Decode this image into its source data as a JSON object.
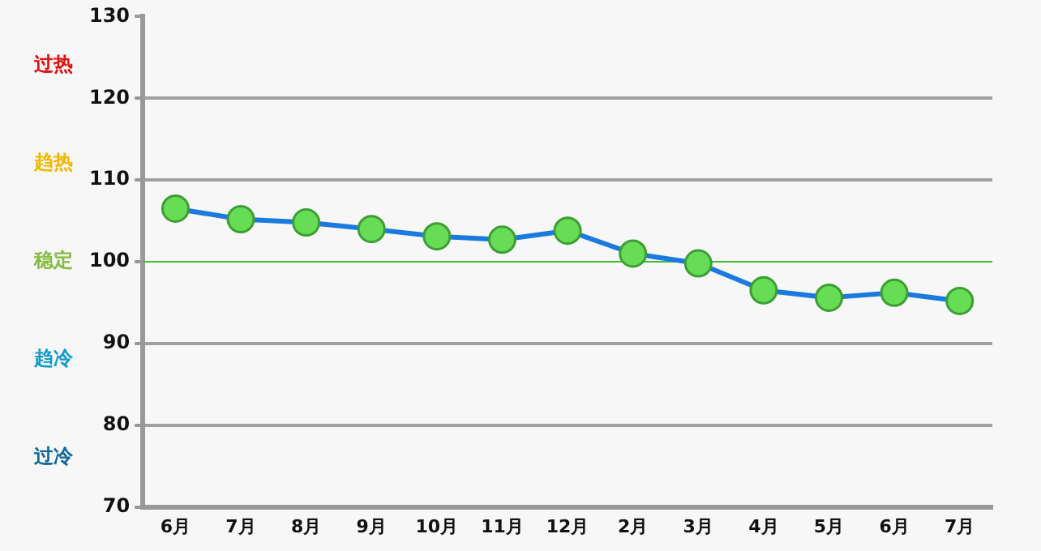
{
  "chart_data": {
    "type": "line",
    "categories": [
      "6月",
      "7月",
      "8月",
      "9月",
      "10月",
      "11月",
      "12月",
      "2月",
      "3月",
      "4月",
      "5月",
      "6月",
      "7月"
    ],
    "series": [
      {
        "color": "#1a7ae0",
        "values": [
          106.5,
          105.2,
          104.8,
          104.0,
          103.1,
          102.7,
          103.8,
          101.0,
          99.8,
          96.5,
          95.6,
          96.2,
          95.2
        ]
      }
    ],
    "ylim": [
      70,
      130
    ],
    "yticks": [
      70,
      80,
      90,
      100,
      110,
      120,
      130
    ],
    "grid": "y",
    "marker": "circle",
    "line_style": "solid",
    "legend": false,
    "ref_lines": [
      {
        "axis": "y",
        "value": 100,
        "color": "#44bb33"
      }
    ],
    "annotations": [
      "过热",
      "趋热",
      "稳定",
      "趋冷",
      "过冷"
    ]
  }
}
